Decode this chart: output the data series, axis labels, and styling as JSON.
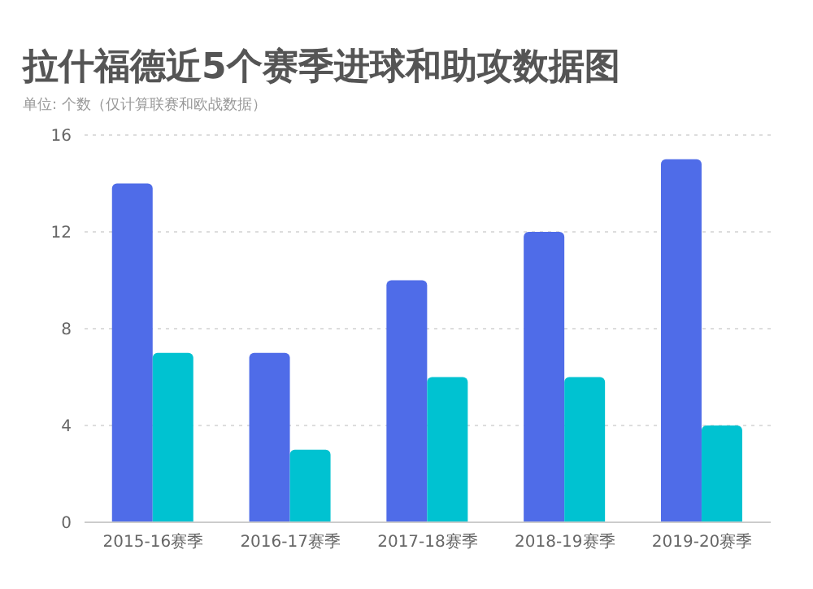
{
  "chart_data": {
    "type": "bar",
    "title": "拉什福德近5个赛季进球和助攻数据图",
    "subtitle": "单位: 个数（仅计算联赛和欧战数据）",
    "categories": [
      "2015-16赛季",
      "2016-17赛季",
      "2017-18赛季",
      "2018-19赛季",
      "2019-20赛季"
    ],
    "series": [
      {
        "color": "#4f6ce8",
        "values": [
          14,
          7,
          10,
          12,
          15
        ]
      },
      {
        "color": "#00c2d1",
        "values": [
          7,
          3,
          6,
          6,
          4
        ]
      }
    ],
    "ylim": [
      0,
      16
    ],
    "yticks": [
      0,
      4,
      8,
      12,
      16
    ],
    "grid": "y"
  }
}
